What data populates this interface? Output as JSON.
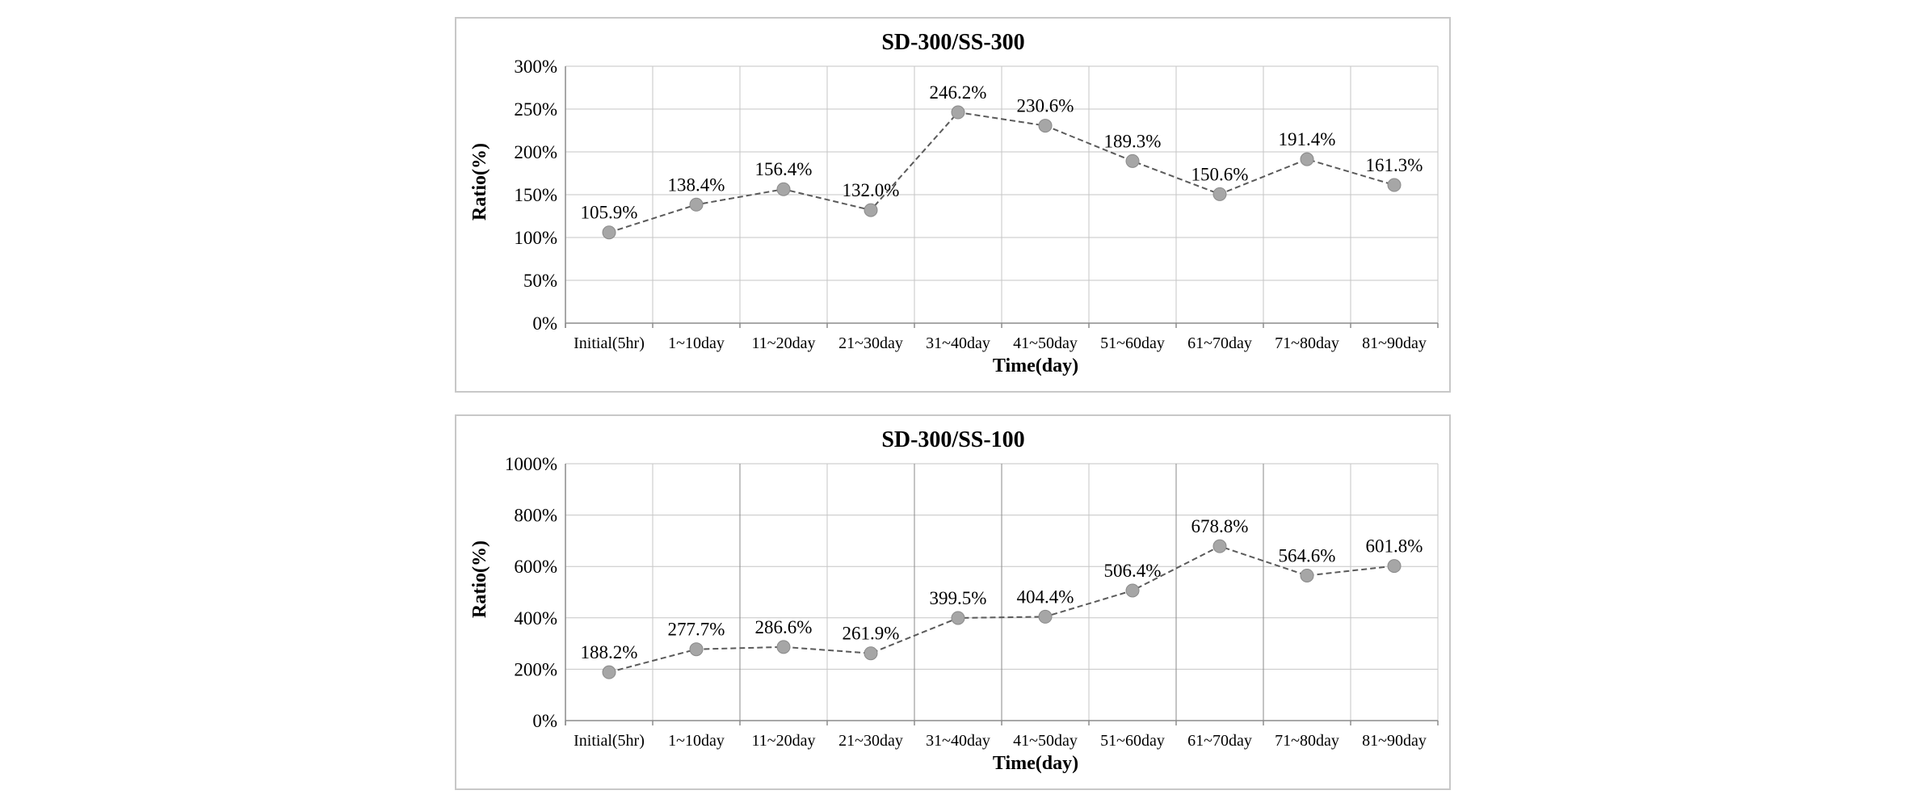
{
  "chart_data": [
    {
      "type": "line",
      "title": "SD-300/SS-300",
      "xlabel": "Time(day)",
      "ylabel": "Ratio(%)",
      "ylim": [
        0,
        300
      ],
      "yticks": [
        0,
        50,
        100,
        150,
        200,
        250,
        300
      ],
      "ytick_labels": [
        "0%",
        "50%",
        "100%",
        "150%",
        "200%",
        "250%",
        "300%"
      ],
      "categories": [
        "Initial(5hr)",
        "1~10day",
        "11~20day",
        "21~30day",
        "31~40day",
        "41~50day",
        "51~60day",
        "61~70day",
        "71~80day",
        "81~90day"
      ],
      "values": [
        105.9,
        138.4,
        156.4,
        132.0,
        246.2,
        230.6,
        189.3,
        150.6,
        191.4,
        161.3
      ],
      "data_labels": [
        "105.9%",
        "138.4%",
        "156.4%",
        "132.0%",
        "246.2%",
        "230.6%",
        "189.3%",
        "150.6%",
        "191.4%",
        "161.3%"
      ],
      "grid": true,
      "line_style": "dashed",
      "marker_color": "#a6a6a6"
    },
    {
      "type": "line",
      "title": "SD-300/SS-100",
      "xlabel": "Time(day)",
      "ylabel": "Ratio(%)",
      "ylim": [
        0,
        1000
      ],
      "yticks": [
        0,
        200,
        400,
        600,
        800,
        1000
      ],
      "ytick_labels": [
        "0%",
        "200%",
        "400%",
        "600%",
        "800%",
        "1000%"
      ],
      "categories": [
        "Initial(5hr)",
        "1~10day",
        "11~20day",
        "21~30day",
        "31~40day",
        "41~50day",
        "51~60day",
        "61~70day",
        "71~80day",
        "81~90day"
      ],
      "values": [
        188.2,
        277.7,
        286.6,
        261.9,
        399.5,
        404.4,
        506.4,
        678.8,
        564.6,
        601.8
      ],
      "data_labels": [
        "188.2%",
        "277.7%",
        "286.6%",
        "261.9%",
        "399.5%",
        "404.4%",
        "506.4%",
        "678.8%",
        "564.6%",
        "601.8%"
      ],
      "grid": true,
      "line_style": "dashed",
      "marker_color": "#a6a6a6"
    }
  ]
}
